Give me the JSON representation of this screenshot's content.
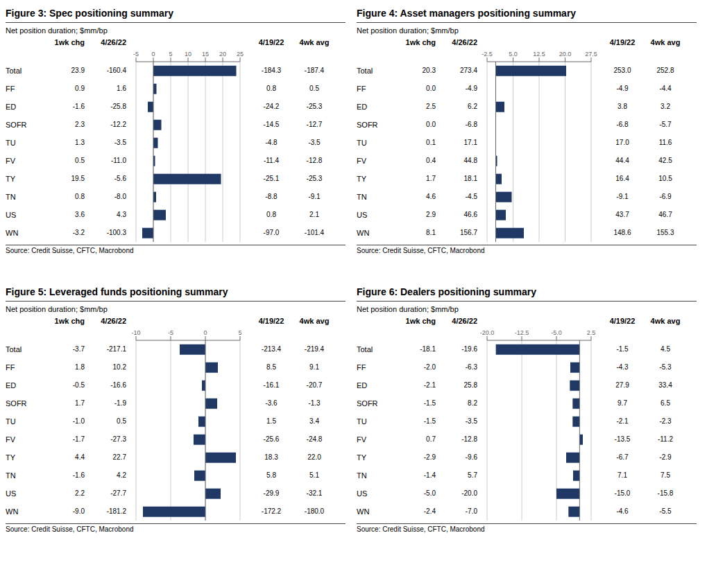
{
  "chart_data": [
    {
      "type": "bar",
      "orientation": "horizontal",
      "title": "Figure 3: Spec positioning summary",
      "subtitle": "Net position duration; $mm/bp",
      "categories": [
        "Total",
        "FF",
        "ED",
        "SOFR",
        "TU",
        "FV",
        "TY",
        "TN",
        "US",
        "WN"
      ],
      "values": [
        23.9,
        0.9,
        -1.6,
        2.3,
        1.3,
        0.5,
        19.5,
        0.8,
        3.6,
        -3.2
      ],
      "color": "#1f3864",
      "grid": true,
      "xlim": [
        -5,
        25
      ],
      "xticks": [
        -5,
        0,
        5,
        10,
        15,
        20,
        25
      ],
      "table": {
        "columns": [
          {
            "name": "1wk chg",
            "values": [
              23.9,
              0.9,
              -1.6,
              2.3,
              1.3,
              0.5,
              19.5,
              0.8,
              3.6,
              -3.2
            ]
          },
          {
            "name": "4/26/22",
            "values": [
              -160.4,
              1.6,
              -25.8,
              -12.2,
              -3.5,
              -11.0,
              -5.6,
              -8.0,
              4.3,
              -100.3
            ]
          },
          {
            "name": "4/19/22",
            "values": [
              -184.3,
              0.8,
              -24.2,
              -14.5,
              -4.8,
              -11.4,
              -25.1,
              -8.8,
              0.8,
              -97.0
            ]
          },
          {
            "name": "4wk avg",
            "values": [
              -187.4,
              0.5,
              -25.3,
              -12.7,
              -3.5,
              -12.8,
              -25.3,
              -9.1,
              2.1,
              -101.4
            ]
          }
        ]
      },
      "annotations": [
        "Source: Credit Suisse, CFTC, Macrobond"
      ]
    },
    {
      "type": "bar",
      "orientation": "horizontal",
      "title": "Figure 4: Asset managers positioning summary",
      "subtitle": "Net position duration; $mm/bp",
      "categories": [
        "Total",
        "FF",
        "ED",
        "SOFR",
        "TU",
        "FV",
        "TY",
        "TN",
        "US",
        "WN"
      ],
      "values": [
        20.3,
        0.0,
        2.5,
        0.0,
        0.1,
        0.4,
        1.7,
        4.6,
        2.9,
        8.1
      ],
      "color": "#1f3864",
      "grid": true,
      "xlim": [
        -2.5,
        27.5
      ],
      "xticks": [
        -2.5,
        {
          "value": 5.0,
          "label": "5.0"
        },
        12.5,
        {
          "value": 20.0,
          "label": "20.0"
        },
        27.5
      ],
      "table": {
        "columns": [
          {
            "name": "1wk chg",
            "values": [
              20.3,
              0.0,
              2.5,
              0.0,
              0.1,
              0.4,
              1.7,
              4.6,
              2.9,
              8.1
            ]
          },
          {
            "name": "4/26/22",
            "values": [
              273.4,
              -4.9,
              6.2,
              -6.8,
              17.1,
              44.8,
              18.1,
              -4.5,
              46.6,
              156.7
            ]
          },
          {
            "name": "4/19/22",
            "values": [
              253.0,
              -4.9,
              3.8,
              -6.8,
              17.0,
              44.4,
              16.4,
              -9.1,
              43.7,
              148.6
            ]
          },
          {
            "name": "4wk avg",
            "values": [
              252.8,
              -4.4,
              3.2,
              -5.7,
              11.6,
              42.5,
              10.5,
              -6.9,
              46.7,
              155.3
            ]
          }
        ]
      },
      "annotations": [
        "Source: Credit Suisse, CFTC, Macrobond"
      ]
    },
    {
      "type": "bar",
      "orientation": "horizontal",
      "title": "Figure 5: Leveraged funds positioning summary",
      "subtitle": "Net position duration; $mm/bp",
      "categories": [
        "Total",
        "FF",
        "ED",
        "SOFR",
        "TU",
        "FV",
        "TY",
        "TN",
        "US",
        "WN"
      ],
      "values": [
        -3.7,
        1.8,
        -0.5,
        1.7,
        -1.0,
        -1.7,
        4.4,
        -1.6,
        2.2,
        -9.0
      ],
      "color": "#1f3864",
      "grid": true,
      "xlim": [
        -10,
        5
      ],
      "xticks": [
        -10,
        -5,
        0,
        5
      ],
      "table": {
        "columns": [
          {
            "name": "1wk chg",
            "values": [
              -3.7,
              1.8,
              -0.5,
              1.7,
              -1.0,
              -1.7,
              4.4,
              -1.6,
              2.2,
              -9.0
            ]
          },
          {
            "name": "4/26/22",
            "values": [
              -217.1,
              10.2,
              -16.6,
              -1.9,
              0.5,
              -27.3,
              22.7,
              4.2,
              -27.7,
              -181.2
            ]
          },
          {
            "name": "4/19/22",
            "values": [
              -213.4,
              8.5,
              -16.1,
              -3.6,
              1.5,
              -25.6,
              18.3,
              5.8,
              -29.9,
              -172.2
            ]
          },
          {
            "name": "4wk avg",
            "values": [
              -219.4,
              9.1,
              -20.7,
              -1.3,
              3.4,
              -24.8,
              22.0,
              5.1,
              -32.1,
              -180.0
            ]
          }
        ]
      },
      "annotations": [
        "Source: Credit Suisse, CFTC, Macrobond"
      ]
    },
    {
      "type": "bar",
      "orientation": "horizontal",
      "title": "Figure 6: Dealers positioning summary",
      "subtitle": "Net position duration; $mm/bp",
      "categories": [
        "Total",
        "FF",
        "ED",
        "SOFR",
        "TU",
        "FV",
        "TY",
        "TN",
        "US",
        "WN"
      ],
      "values": [
        -18.1,
        -2.0,
        -2.1,
        -1.5,
        -1.5,
        0.7,
        -2.9,
        -1.4,
        -5.0,
        -2.4
      ],
      "color": "#1f3864",
      "grid": true,
      "xlim": [
        -20.0,
        2.5
      ],
      "xticks": [
        {
          "value": -20.0,
          "label": "-20.0"
        },
        -12.5,
        {
          "value": -5.0,
          "label": "-5.0"
        },
        2.5
      ],
      "table": {
        "columns": [
          {
            "name": "1wk chg",
            "values": [
              -18.1,
              -2.0,
              -2.1,
              -1.5,
              -1.5,
              0.7,
              -2.9,
              -1.4,
              -5.0,
              -2.4
            ]
          },
          {
            "name": "4/26/22",
            "values": [
              -19.6,
              -6.3,
              25.8,
              8.2,
              -3.5,
              -12.8,
              -9.6,
              5.7,
              -20.0,
              -7.0
            ]
          },
          {
            "name": "4/19/22",
            "values": [
              -1.5,
              -4.3,
              27.9,
              9.7,
              -2.1,
              -13.5,
              -6.7,
              7.1,
              -15.0,
              -4.6
            ]
          },
          {
            "name": "4wk avg",
            "values": [
              4.5,
              -5.3,
              33.4,
              6.5,
              -2.3,
              -11.2,
              -2.9,
              7.5,
              -15.8,
              -5.5
            ]
          }
        ]
      },
      "annotations": [
        "Source: Credit Suisse, CFTC, Macrobond"
      ]
    }
  ]
}
